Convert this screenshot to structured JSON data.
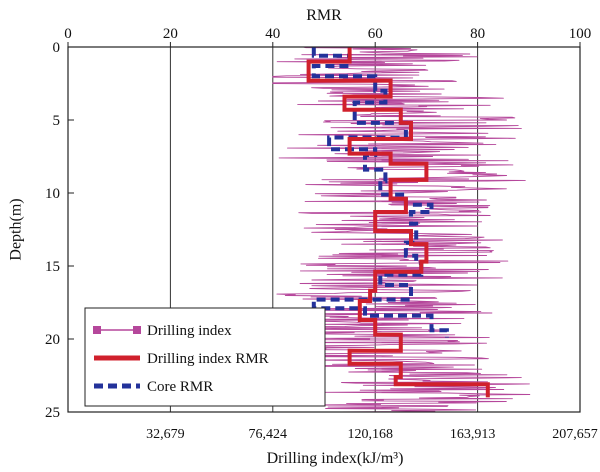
{
  "chart_data": {
    "type": "line",
    "title": "",
    "top_axis": {
      "label": "RMR",
      "range": [
        0,
        100
      ],
      "ticks": [
        0,
        20,
        40,
        60,
        80,
        100
      ],
      "tick_labels": [
        "0",
        "20",
        "40",
        "60",
        "80",
        "100"
      ]
    },
    "left_axis": {
      "label": "Depth(m)",
      "range": [
        0,
        25
      ],
      "inverted": true,
      "ticks": [
        0,
        5,
        10,
        15,
        20,
        25
      ],
      "tick_labels": [
        "0",
        "5",
        "10",
        "15",
        "20",
        "25"
      ]
    },
    "bottom_axis": {
      "label": "Drilling index(kJ/m³)",
      "tick_labels": [
        "32,679",
        "76,424",
        "120,168",
        "163,913",
        "207,657"
      ],
      "tick_rmr_positions": [
        20,
        40,
        60,
        80,
        100
      ]
    },
    "grid": "vertical",
    "legend_position": "bottom-left",
    "series": [
      {
        "name": "Drilling index",
        "color": "#b5479b",
        "style": "thin-line",
        "marker": "square",
        "seed": 7,
        "values": [
          [
            0.0,
            58
          ],
          [
            1.0,
            60
          ],
          [
            2.0,
            52
          ],
          [
            3.0,
            64
          ],
          [
            4.0,
            58
          ],
          [
            5.0,
            72
          ],
          [
            6.0,
            70
          ],
          [
            7.0,
            56
          ],
          [
            8.0,
            70
          ],
          [
            9.0,
            68
          ],
          [
            10.0,
            70
          ],
          [
            11.0,
            66
          ],
          [
            12.0,
            64
          ],
          [
            13.0,
            66
          ],
          [
            14.0,
            68
          ],
          [
            15.0,
            64
          ],
          [
            16.0,
            62
          ],
          [
            17.0,
            60
          ],
          [
            18.0,
            62
          ],
          [
            19.0,
            62
          ],
          [
            20.0,
            64
          ],
          [
            21.0,
            60
          ],
          [
            22.0,
            68
          ],
          [
            23.0,
            72
          ],
          [
            24.0,
            70
          ],
          [
            25.0,
            68
          ]
        ]
      },
      {
        "name": "Drilling index RMR",
        "color": "#d0202c",
        "style": "thick-solid",
        "points": [
          [
            0.0,
            55
          ],
          [
            0.5,
            55
          ],
          [
            0.5,
            55
          ],
          [
            1.0,
            55
          ],
          [
            1.0,
            47
          ],
          [
            2.3,
            47
          ],
          [
            2.3,
            63
          ],
          [
            3.4,
            63
          ],
          [
            3.4,
            54
          ],
          [
            4.3,
            54
          ],
          [
            4.3,
            65
          ],
          [
            5.2,
            65
          ],
          [
            5.2,
            67
          ],
          [
            6.3,
            67
          ],
          [
            6.3,
            55
          ],
          [
            7.3,
            55
          ],
          [
            7.3,
            63
          ],
          [
            8.0,
            63
          ],
          [
            8.0,
            70
          ],
          [
            9.1,
            70
          ],
          [
            9.1,
            63
          ],
          [
            10.4,
            63
          ],
          [
            10.4,
            66
          ],
          [
            11.3,
            66
          ],
          [
            11.3,
            60
          ],
          [
            12.6,
            60
          ],
          [
            12.6,
            67
          ],
          [
            13.5,
            67
          ],
          [
            13.5,
            70
          ],
          [
            14.7,
            70
          ],
          [
            14.7,
            69
          ],
          [
            15.4,
            69
          ],
          [
            15.4,
            60
          ],
          [
            16.7,
            60
          ],
          [
            16.7,
            59
          ],
          [
            17.4,
            59
          ],
          [
            17.4,
            57
          ],
          [
            18.7,
            57
          ],
          [
            18.7,
            60
          ],
          [
            19.7,
            60
          ],
          [
            19.7,
            65
          ],
          [
            20.8,
            65
          ],
          [
            20.8,
            55
          ],
          [
            21.7,
            55
          ],
          [
            21.7,
            65
          ],
          [
            22.6,
            65
          ],
          [
            22.6,
            64
          ],
          [
            23.1,
            64
          ],
          [
            23.1,
            82
          ],
          [
            24.0,
            82
          ]
        ]
      },
      {
        "name": "Core RMR",
        "color": "#23329a",
        "style": "thick-dashed",
        "points": [
          [
            0.0,
            48
          ],
          [
            0.6,
            48
          ],
          [
            0.6,
            55
          ],
          [
            1.3,
            55
          ],
          [
            1.3,
            48
          ],
          [
            2.0,
            48
          ],
          [
            2.0,
            60
          ],
          [
            3.0,
            60
          ],
          [
            3.0,
            62
          ],
          [
            3.8,
            62
          ],
          [
            3.8,
            56
          ],
          [
            5.2,
            56
          ],
          [
            5.2,
            66
          ],
          [
            6.2,
            66
          ],
          [
            6.2,
            51
          ],
          [
            7.0,
            51
          ],
          [
            7.0,
            60
          ],
          [
            7.4,
            60
          ],
          [
            7.4,
            58
          ],
          [
            8.4,
            58
          ],
          [
            8.4,
            62
          ],
          [
            9.2,
            62
          ],
          [
            9.2,
            61
          ],
          [
            10.1,
            61
          ],
          [
            10.1,
            66
          ],
          [
            10.8,
            66
          ],
          [
            10.8,
            71
          ],
          [
            11.3,
            71
          ],
          [
            11.3,
            67
          ],
          [
            12.1,
            67
          ],
          [
            12.1,
            68
          ],
          [
            13.4,
            68
          ],
          [
            13.4,
            66
          ],
          [
            14.3,
            66
          ],
          [
            14.3,
            68
          ],
          [
            14.8,
            68
          ],
          [
            14.8,
            69
          ],
          [
            15.6,
            69
          ],
          [
            15.6,
            61
          ],
          [
            16.3,
            61
          ],
          [
            16.3,
            67
          ],
          [
            17.3,
            67
          ],
          [
            17.3,
            48
          ],
          [
            17.9,
            48
          ],
          [
            17.9,
            58
          ],
          [
            18.4,
            58
          ],
          [
            18.4,
            71
          ],
          [
            19.4,
            71
          ],
          [
            19.4,
            74
          ],
          [
            19.9,
            74
          ]
        ]
      }
    ]
  }
}
